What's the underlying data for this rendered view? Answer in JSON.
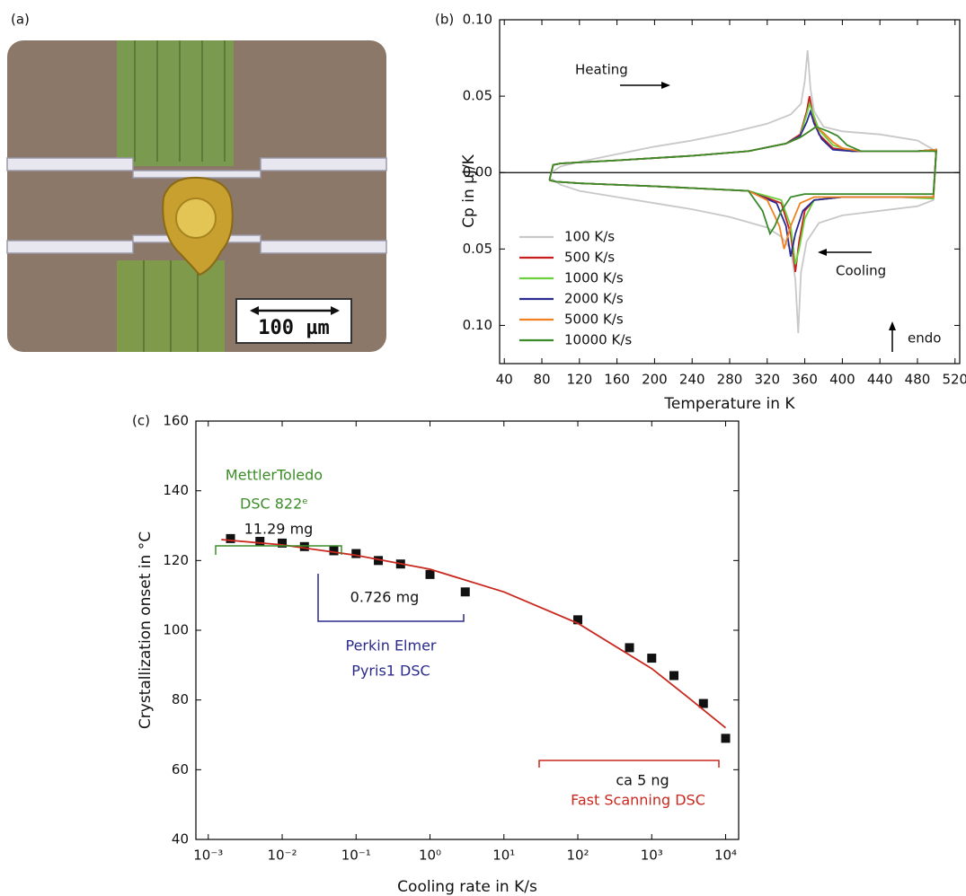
{
  "image_panel": {
    "label": "(a)",
    "scale_bar": "100 µm"
  },
  "chart_data": [
    {
      "type": "line",
      "label": "(b)",
      "x_label": "Temperature in K",
      "y_label": "Cp in µJ/K",
      "xlim": [
        35,
        525
      ],
      "ylim": [
        -0.125,
        0.1
      ],
      "xticks": [
        40,
        80,
        120,
        160,
        200,
        240,
        280,
        320,
        360,
        400,
        440,
        480,
        520
      ],
      "yticks": [
        {
          "value": 0.1,
          "label": "0.10"
        },
        {
          "value": 0.05,
          "label": "0.05"
        },
        {
          "value": 0,
          "label": "0.00"
        },
        {
          "value": -0.05,
          "label": "0.05"
        },
        {
          "value": -0.1,
          "label": "0.10"
        }
      ],
      "zero_line": true,
      "legend": "lower left",
      "annotations": [
        "Heating",
        "Cooling",
        "endo"
      ],
      "series": [
        {
          "name": "100 K/s",
          "color": "#c8c8c8",
          "x": [
            90,
            100,
            120,
            160,
            200,
            240,
            280,
            320,
            345,
            356,
            360,
            363,
            366,
            370,
            380,
            400,
            440,
            480,
            497,
            500,
            500,
            497,
            480,
            440,
            400,
            375,
            362,
            356,
            353,
            350,
            345,
            335,
            320,
            280,
            240,
            200,
            160,
            120,
            100,
            90
          ],
          "values": [
            0,
            0.004,
            0.007,
            0.012,
            0.017,
            0.021,
            0.026,
            0.032,
            0.038,
            0.045,
            0.06,
            0.08,
            0.055,
            0.04,
            0.03,
            0.027,
            0.025,
            0.021,
            0.015,
            0.012,
            0.012,
            -0.018,
            -0.022,
            -0.025,
            -0.028,
            -0.033,
            -0.045,
            -0.065,
            -0.105,
            -0.07,
            -0.05,
            -0.042,
            -0.036,
            -0.029,
            -0.024,
            -0.02,
            -0.016,
            -0.012,
            -0.008,
            -0.004
          ]
        },
        {
          "name": "500 K/s",
          "color": "#c81e1e",
          "x": [
            88,
            92,
            100,
            160,
            240,
            300,
            340,
            355,
            362,
            365,
            368,
            375,
            390,
            410,
            440,
            480,
            500,
            500,
            497,
            460,
            400,
            370,
            360,
            354,
            350,
            345,
            335,
            300,
            200,
            120,
            95,
            88
          ],
          "values": [
            -0.005,
            0.005,
            0.006,
            0.008,
            0.011,
            0.014,
            0.019,
            0.025,
            0.04,
            0.05,
            0.04,
            0.025,
            0.016,
            0.014,
            0.014,
            0.014,
            0.015,
            0.015,
            -0.016,
            -0.016,
            -0.016,
            -0.018,
            -0.025,
            -0.045,
            -0.065,
            -0.04,
            -0.02,
            -0.012,
            -0.009,
            -0.007,
            -0.006,
            -0.005
          ]
        },
        {
          "name": "1000 K/s",
          "color": "#6ccf3c",
          "x": [
            88,
            92,
            100,
            160,
            240,
            300,
            340,
            355,
            362,
            365,
            368,
            375,
            390,
            410,
            440,
            480,
            500,
            500,
            497,
            460,
            400,
            370,
            360,
            354,
            350,
            345,
            335,
            300,
            200,
            120,
            95,
            88
          ],
          "values": [
            -0.005,
            0.005,
            0.006,
            0.008,
            0.011,
            0.014,
            0.019,
            0.024,
            0.038,
            0.045,
            0.04,
            0.028,
            0.018,
            0.014,
            0.014,
            0.014,
            0.015,
            0.015,
            -0.017,
            -0.016,
            -0.016,
            -0.018,
            -0.03,
            -0.05,
            -0.06,
            -0.035,
            -0.018,
            -0.012,
            -0.009,
            -0.007,
            -0.006,
            -0.005
          ]
        },
        {
          "name": "2000 K/s",
          "color": "#2a2a90",
          "x": [
            88,
            92,
            100,
            160,
            240,
            300,
            340,
            355,
            362,
            366,
            370,
            378,
            390,
            410,
            440,
            480,
            500,
            500,
            497,
            460,
            400,
            370,
            358,
            350,
            345,
            340,
            330,
            300,
            200,
            120,
            95,
            88
          ],
          "values": [
            -0.005,
            0.005,
            0.006,
            0.008,
            0.011,
            0.014,
            0.019,
            0.024,
            0.033,
            0.04,
            0.032,
            0.022,
            0.015,
            0.014,
            0.014,
            0.014,
            0.015,
            0.015,
            -0.016,
            -0.016,
            -0.016,
            -0.018,
            -0.025,
            -0.04,
            -0.055,
            -0.035,
            -0.02,
            -0.012,
            -0.009,
            -0.007,
            -0.006,
            -0.005
          ]
        },
        {
          "name": "5000 K/s",
          "color": "#f08020",
          "x": [
            88,
            92,
            100,
            160,
            240,
            300,
            340,
            355,
            365,
            372,
            380,
            390,
            400,
            420,
            440,
            480,
            500,
            500,
            497,
            460,
            400,
            370,
            355,
            345,
            338,
            333,
            320,
            300,
            200,
            120,
            95,
            88
          ],
          "values": [
            -0.005,
            0.005,
            0.006,
            0.008,
            0.011,
            0.014,
            0.019,
            0.023,
            0.027,
            0.03,
            0.026,
            0.02,
            0.016,
            0.014,
            0.014,
            0.014,
            0.015,
            0.015,
            -0.016,
            -0.016,
            -0.016,
            -0.016,
            -0.02,
            -0.035,
            -0.05,
            -0.035,
            -0.018,
            -0.012,
            -0.009,
            -0.007,
            -0.006,
            -0.005
          ]
        },
        {
          "name": "10000 K/s",
          "color": "#3a8a2a",
          "x": [
            88,
            92,
            100,
            160,
            240,
            300,
            340,
            355,
            365,
            372,
            385,
            395,
            405,
            420,
            440,
            480,
            500,
            500,
            497,
            460,
            400,
            360,
            345,
            335,
            328,
            323,
            315,
            300,
            200,
            120,
            95,
            88
          ],
          "values": [
            -0.005,
            0.005,
            0.006,
            0.008,
            0.011,
            0.014,
            0.019,
            0.023,
            0.027,
            0.03,
            0.027,
            0.024,
            0.018,
            0.014,
            0.014,
            0.014,
            0.014,
            0.014,
            -0.014,
            -0.014,
            -0.014,
            -0.014,
            -0.016,
            -0.025,
            -0.035,
            -0.04,
            -0.025,
            -0.012,
            -0.009,
            -0.007,
            -0.006,
            -0.005
          ]
        }
      ]
    },
    {
      "type": "scatter",
      "label": "(c)",
      "x_label": "Cooling rate in K/s",
      "y_label": "Crystallization onset in °C",
      "xscale": "log",
      "xlim": [
        0.00068,
        15000
      ],
      "ylim": [
        40,
        160
      ],
      "xticks": [
        {
          "value": 0.001,
          "label": "10⁻³"
        },
        {
          "value": 0.01,
          "label": "10⁻²"
        },
        {
          "value": 0.1,
          "label": "10⁻¹"
        },
        {
          "value": 1,
          "label": "10⁰"
        },
        {
          "value": 10,
          "label": "10¹"
        },
        {
          "value": 100,
          "label": "10²"
        },
        {
          "value": 1000,
          "label": "10³"
        },
        {
          "value": 10000,
          "label": "10⁴"
        }
      ],
      "yticks": [
        40,
        60,
        80,
        100,
        120,
        140,
        160
      ],
      "annotations": [
        {
          "text": "MettlerToledo",
          "color": "#3c8c28"
        },
        {
          "text": "DSC 822ᵉ",
          "color": "#3c8c28"
        },
        {
          "text": "11.29 mg",
          "color": "#111111"
        },
        {
          "text": "0.726 mg",
          "color": "#111111"
        },
        {
          "text": "Perkin Elmer",
          "color": "#2a2a8c"
        },
        {
          "text": "Pyris1 DSC",
          "color": "#2a2a8c"
        },
        {
          "text": "ca 5 ng",
          "color": "#111111"
        },
        {
          "text": "Fast Scanning DSC",
          "color": "#c8281e"
        }
      ],
      "series": [
        {
          "mode": "markers",
          "color": "#111111",
          "x": [
            0.002,
            0.005,
            0.01,
            0.02,
            0.05,
            0.1,
            0.2,
            0.4,
            1,
            3,
            100,
            500,
            1000,
            2000,
            5000,
            10000
          ],
          "values": [
            126.3,
            125.5,
            125,
            124,
            122.8,
            122,
            120,
            119,
            116,
            111,
            103,
            95,
            92,
            87,
            79,
            69
          ]
        },
        {
          "mode": "line",
          "color": "#c8281e",
          "x": [
            0.0015,
            0.01,
            0.1,
            1,
            10,
            100,
            1000,
            3000,
            10000
          ],
          "values": [
            126,
            124.5,
            121.5,
            117.5,
            111,
            102,
            89,
            81,
            72
          ]
        }
      ]
    }
  ]
}
